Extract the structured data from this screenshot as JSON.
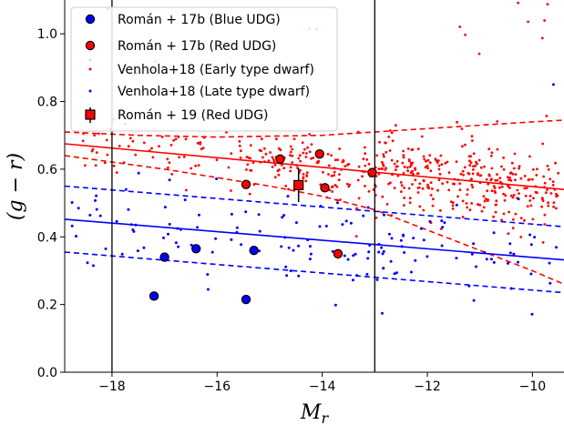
{
  "chart_data": {
    "type": "scatter",
    "xlabel": "M_r",
    "ylabel": "(g − r)",
    "xlim": [
      -18.9,
      -9.4
    ],
    "ylim": [
      0.0,
      1.1
    ],
    "x_ticks": [
      -18,
      -16,
      -14,
      -12,
      -10
    ],
    "x_tick_labels": [
      "−18",
      "−16",
      "−14",
      "−12",
      "−10"
    ],
    "y_ticks": [
      0.0,
      0.2,
      0.4,
      0.6,
      0.8,
      1.0
    ],
    "y_tick_labels": [
      "0.0",
      "0.2",
      "0.4",
      "0.6",
      "0.8",
      "1.0"
    ],
    "grid": false,
    "legend_position": "upper-left",
    "legend": [
      {
        "label": "Román + 17b (Blue UDG)",
        "marker": "circle",
        "color": "#0000ff",
        "edge": "#000000",
        "size": "large"
      },
      {
        "label": "Román + 17b (Red UDG)",
        "marker": "circle",
        "color": "#ff0000",
        "edge": "#000000",
        "size": "large"
      },
      {
        "label": "Venhola+18 (Early type dwarf)",
        "marker": "dot",
        "color": "#ff0000",
        "size": "small"
      },
      {
        "label": "Venhola+18 (Late type dwarf)",
        "marker": "dot",
        "color": "#0000ff",
        "size": "small"
      },
      {
        "label": "Román + 19 (Red UDG)",
        "marker": "square",
        "color": "#ff0000",
        "edge": "#000000",
        "errorbar": true
      }
    ],
    "vertical_lines": [
      -18,
      -13
    ],
    "series": [
      {
        "name": "Román + 17b (Blue UDG)",
        "color": "#0000ff",
        "marker": "circle",
        "points": [
          [
            -17.2,
            0.225
          ],
          [
            -17.0,
            0.34
          ],
          [
            -16.4,
            0.365
          ],
          [
            -15.45,
            0.215
          ],
          [
            -15.3,
            0.36
          ]
        ]
      },
      {
        "name": "Román + 17b (Red UDG)",
        "color": "#ff0000",
        "marker": "circle",
        "points": [
          [
            -15.45,
            0.555
          ],
          [
            -14.8,
            0.63
          ],
          [
            -14.05,
            0.645
          ],
          [
            -13.95,
            0.545
          ],
          [
            -13.7,
            0.35
          ],
          [
            -13.05,
            0.59
          ]
        ]
      },
      {
        "name": "Román + 19 (Red UDG)",
        "color": "#ff0000",
        "marker": "square",
        "points": [
          [
            -14.45,
            0.553
          ]
        ],
        "y_err": [
          0.05
        ]
      },
      {
        "name": "Venhola+18 (Early type dwarf)",
        "color": "#ff0000",
        "marker": "dot",
        "n_points": 520,
        "x_range": [
          -18.6,
          -9.5
        ],
        "y_range": [
          0.11,
          1.1
        ]
      },
      {
        "name": "Venhola+18 (Late type dwarf)",
        "color": "#0000ff",
        "marker": "dot",
        "n_points": 150,
        "x_range": [
          -18.9,
          -9.5
        ],
        "y_range": [
          0.14,
          0.99
        ]
      }
    ],
    "fit_lines": [
      {
        "color": "#ff0000",
        "style": "solid",
        "points": [
          [
            -18.9,
            0.675
          ],
          [
            -9.4,
            0.54
          ]
        ]
      },
      {
        "color": "#ff0000",
        "style": "dashed",
        "points": [
          [
            -18.9,
            0.71
          ],
          [
            -17.5,
            0.7
          ],
          [
            -16,
            0.695
          ],
          [
            -14,
            0.7
          ],
          [
            -12,
            0.72
          ],
          [
            -10,
            0.74
          ],
          [
            -9.4,
            0.745
          ]
        ]
      },
      {
        "color": "#ff0000",
        "style": "dashed",
        "points": [
          [
            -18.9,
            0.64
          ],
          [
            -17,
            0.6
          ],
          [
            -15,
            0.55
          ],
          [
            -14,
            0.52
          ],
          [
            -13,
            0.48
          ],
          [
            -12,
            0.42
          ],
          [
            -11,
            0.36
          ],
          [
            -10,
            0.3
          ],
          [
            -9.4,
            0.26
          ]
        ]
      },
      {
        "color": "#0000ff",
        "style": "solid",
        "points": [
          [
            -18.9,
            0.452
          ],
          [
            -9.4,
            0.332
          ]
        ]
      },
      {
        "color": "#0000ff",
        "style": "dashed",
        "points": [
          [
            -18.9,
            0.55
          ],
          [
            -9.4,
            0.43
          ]
        ]
      },
      {
        "color": "#0000ff",
        "style": "dashed",
        "points": [
          [
            -18.9,
            0.355
          ],
          [
            -9.4,
            0.235
          ]
        ]
      }
    ]
  }
}
